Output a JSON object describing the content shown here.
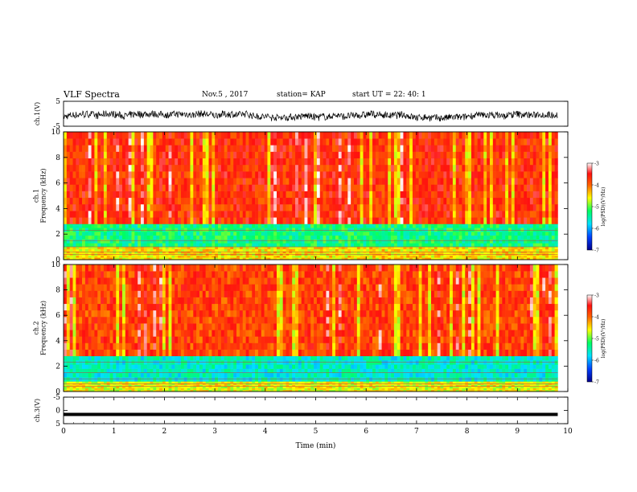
{
  "header": {
    "title": "VLF Spectra",
    "date": "Nov.5 , 2017",
    "station": "station= KAP",
    "start": "start UT = 22: 40: 1"
  },
  "chart_data": [
    {
      "type": "line",
      "name": "ch1-waveform",
      "ylabel": "ch.1(V)",
      "ylim": [
        -5,
        5
      ],
      "yticks": [
        "5",
        "-5"
      ],
      "xlim": [
        0,
        10
      ],
      "note": "dense noisy waveform around -1 V, amplitude about ±1.5 V"
    },
    {
      "type": "heatmap",
      "name": "ch1-spectrogram",
      "ylabel": "ch.1\nFrequency (kHz)",
      "ylim": [
        0,
        10
      ],
      "yticks": [
        "0",
        "2",
        "4",
        "6",
        "8",
        "10"
      ],
      "xlim": [
        0,
        9.8
      ],
      "colorbar": {
        "label": "log(PSD)(V²/Hz)",
        "range": [
          -7,
          -3
        ],
        "ticks": [
          "-3",
          "-4",
          "-5",
          "-6",
          "-7"
        ]
      },
      "bands": [
        {
          "from_khz": 0,
          "to_khz": 1.0,
          "log_psd": -4.5
        },
        {
          "from_khz": 1.0,
          "to_khz": 2.8,
          "log_psd": -5.3
        },
        {
          "from_khz": 2.8,
          "to_khz": 10,
          "log_psd": -3.7
        }
      ]
    },
    {
      "type": "heatmap",
      "name": "ch2-spectrogram",
      "ylabel": "ch.2\nFrequency (kHz)",
      "ylim": [
        0,
        10
      ],
      "yticks": [
        "0",
        "2",
        "4",
        "6",
        "8",
        "10"
      ],
      "xlim": [
        0,
        9.8
      ],
      "colorbar": {
        "label": "log(PSD)(V²/Hz)",
        "range": [
          -7,
          -3
        ],
        "ticks": [
          "-3",
          "-4",
          "-5",
          "-6",
          "-7"
        ]
      },
      "bands": [
        {
          "from_khz": 0,
          "to_khz": 0.8,
          "log_psd": -4.6
        },
        {
          "from_khz": 0.8,
          "to_khz": 2.8,
          "log_psd": -5.6
        },
        {
          "from_khz": 2.8,
          "to_khz": 10,
          "log_psd": -3.8
        }
      ]
    },
    {
      "type": "line",
      "name": "ch3-waveform",
      "ylabel": "ch.3(V)",
      "ylim": [
        -5,
        5
      ],
      "yticks": [
        "5",
        "0",
        "-5"
      ],
      "xlim": [
        0,
        10
      ],
      "note": "flat thick line at about -1.5 V"
    }
  ],
  "xaxis": {
    "label": "Time (min)",
    "ticks": [
      "0",
      "1",
      "2",
      "3",
      "4",
      "5",
      "6",
      "7",
      "8",
      "9",
      "10"
    ]
  },
  "colors": {
    "high": "#ff2a1a",
    "mid": "#ffff00",
    "low": "#00ff88",
    "lowest": "#0000a0"
  }
}
